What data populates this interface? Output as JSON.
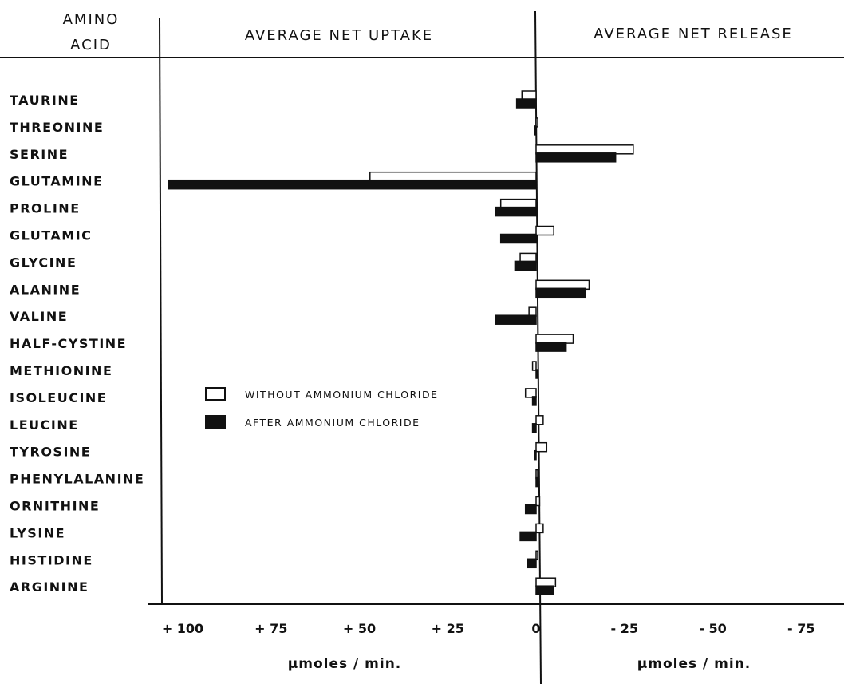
{
  "chart_data": {
    "type": "bar",
    "orientation": "horizontal",
    "header": {
      "col1_line1": "AMINO",
      "col1_line2": "ACID",
      "left": "AVERAGE NET UPTAKE",
      "right": "AVERAGE NET RELEASE"
    },
    "categories": [
      "TAURINE",
      "THREONINE",
      "SERINE",
      "GLUTAMINE",
      "PROLINE",
      "GLUTAMIC",
      "GLYCINE",
      "ALANINE",
      "VALINE",
      "HALF-CYSTINE",
      "METHIONINE",
      "ISOLEUCINE",
      "LEUCINE",
      "TYROSINE",
      "PHENYLALANINE",
      "ORNITHINE",
      "LYSINE",
      "HISTIDINE",
      "ARGININE"
    ],
    "series": [
      {
        "name": "WITHOUT AMMONIUM CHLORIDE",
        "fill": "#ffffff",
        "values": [
          4,
          -0.3,
          -27.5,
          47,
          10,
          -5,
          4.5,
          -15,
          2,
          -10.5,
          1,
          3,
          -2,
          -3,
          -0.2,
          -1,
          -2,
          0,
          -5.5
        ]
      },
      {
        "name": "AFTER AMMONIUM CHLORIDE",
        "fill": "#111111",
        "values": [
          5.5,
          0.5,
          -22.5,
          104,
          11.5,
          10,
          6,
          -14,
          11.5,
          -8.5,
          -0.2,
          1,
          1,
          0.5,
          -0.5,
          3,
          4.5,
          2.5,
          -5
        ]
      }
    ],
    "x_ticks": [
      {
        "value": 100,
        "label": "+ 100"
      },
      {
        "value": 75,
        "label": "+ 75"
      },
      {
        "value": 50,
        "label": "+ 50"
      },
      {
        "value": 25,
        "label": "+ 25"
      },
      {
        "value": 0,
        "label": "0"
      },
      {
        "value": -25,
        "label": "- 25"
      },
      {
        "value": -50,
        "label": "- 50"
      },
      {
        "value": -75,
        "label": "- 75"
      }
    ],
    "xlim": [
      105,
      -80
    ],
    "xlabel_left": "µmoles / min.",
    "xlabel_right": "µmoles / min.",
    "legend_position": "center-left",
    "grid": false
  }
}
